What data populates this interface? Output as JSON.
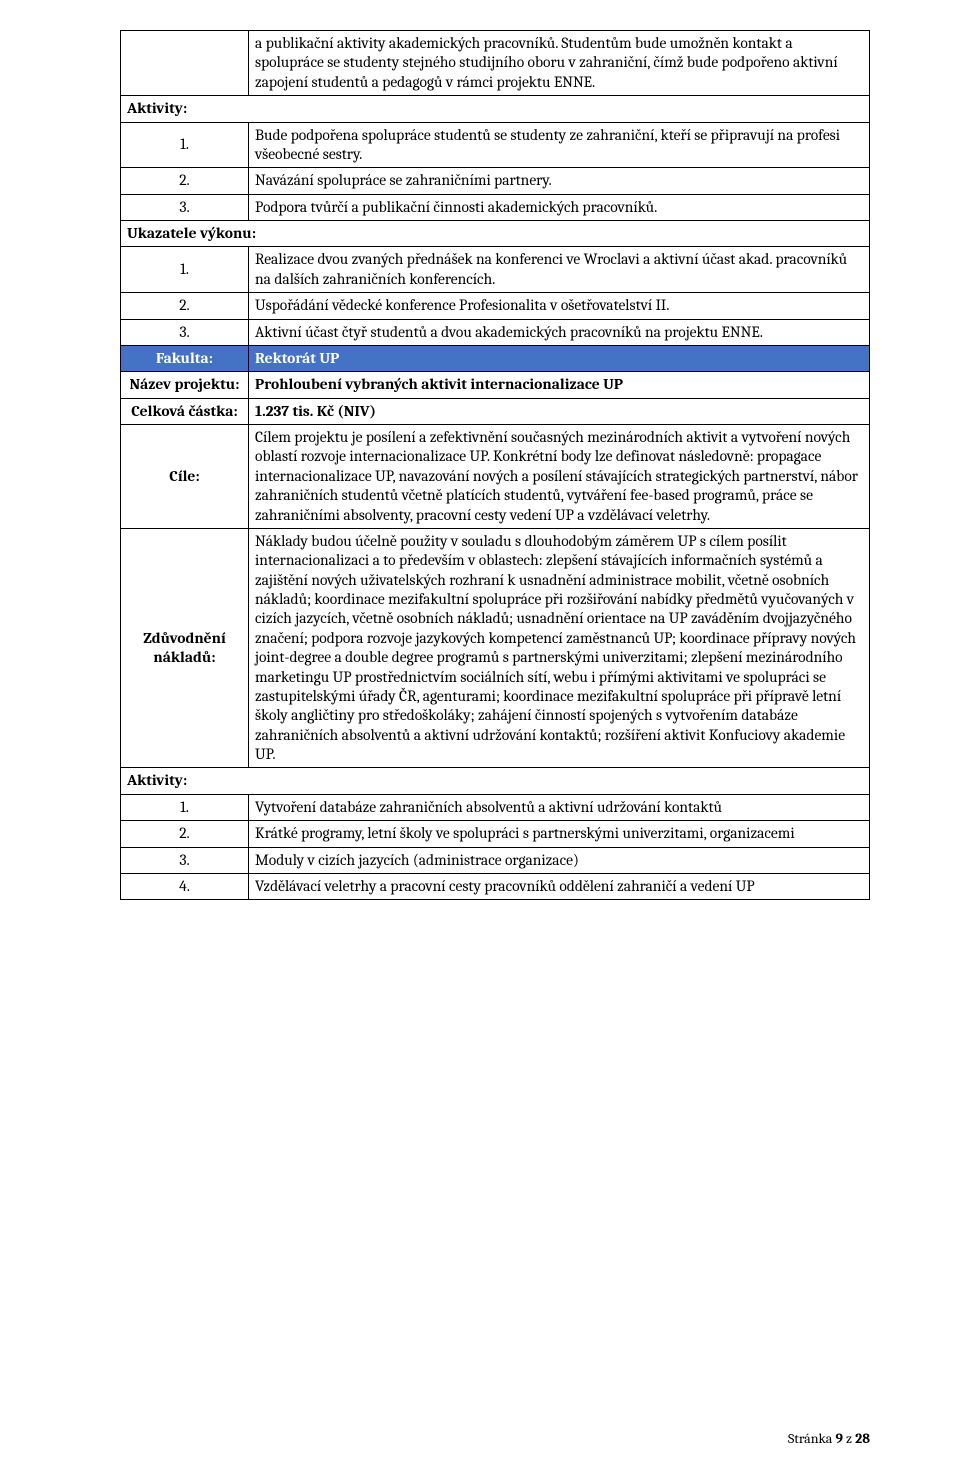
{
  "colors": {
    "row_highlight_bg": "#4472c4",
    "row_highlight_text": "#ffffff",
    "border": "#000000",
    "page_bg": "#ffffff",
    "text": "#000000"
  },
  "section1": {
    "intro": "a publikační aktivity akademických pracovníků. Studentům bude umožněn kontakt a spolupráce se studenty stejného studijního oboru v zahraniční, čímž bude podpořeno aktivní zapojení studentů a pedagogů v rámci projektu ENNE.",
    "aktivity_label": "Aktivity:",
    "aktivity": [
      {
        "n": "1.",
        "text": "Bude podpořena spolupráce studentů se studenty ze zahraniční, kteří se připravují na profesi všeobecné sestry."
      },
      {
        "n": "2.",
        "text": "Navázání spolupráce se zahraničními partnery."
      },
      {
        "n": "3.",
        "text": "Podpora tvůrčí a publikační činnosti akademických pracovníků."
      }
    ],
    "ukazatele_label": "Ukazatele výkonu:",
    "ukazatele": [
      {
        "n": "1.",
        "text": "Realizace dvou zvaných přednášek na konferenci ve Wroclavi a aktivní účast akad. pracovníků na dalších zahraničních konferencích."
      },
      {
        "n": "2.",
        "text": "Uspořádání vědecké konference Profesionalita v ošetřovatelství II."
      },
      {
        "n": "3.",
        "text": "Aktivní účast čtyř studentů a dvou akademických pracovníků na projektu ENNE."
      }
    ]
  },
  "section2": {
    "fakulta_label": "Fakulta:",
    "fakulta_value": "Rektorát UP",
    "nazev_label": "Název projektu:",
    "nazev_value": "Prohloubení vybraných aktivit internacionalizace UP",
    "castka_label": "Celková částka:",
    "castka_value": "1.237 tis. Kč (NIV)",
    "cile_label": "Cíle:",
    "cile_value": "Cílem projektu je posílení a zefektivnění současných mezinárodních aktivit a vytvoření nových oblastí rozvoje internacionalizace UP. Konkrétní body lze definovat následovně: propagace internacionalizace UP, navazování nových a posílení stávajících strategických partnerství, nábor zahraničních studentů včetně platících studentů, vytváření fee-based programů, práce se zahraničními absolventy, pracovní cesty vedení UP a vzdělávací veletrhy.",
    "naklady_label": "Zdůvodnění nákladů:",
    "naklady_value": "Náklady budou účelně použity v souladu s dlouhodobým záměrem UP s cílem posílit internacionalizaci a to především v oblastech: zlepšení stávajících informačních systémů a zajištění nových uživatelských rozhraní k usnadnění administrace mobilit, včetně osobních nákladů; koordinace mezifakultní spolupráce při rozšiřování nabídky předmětů vyučovaných v cizích jazycích, včetně osobních nákladů; usnadnění orientace na UP zaváděním dvojjazyčného značení; podpora rozvoje jazykových kompetencí zaměstnanců UP; koordinace přípravy nových joint-degree a double degree programů s partnerskými univerzitami; zlepšení mezinárodního marketingu UP prostřednictvím sociálních sítí, webu i přímými aktivitami ve spolupráci se zastupitelskými úřady ČR, agenturami; koordinace mezifakultní spolupráce při přípravě letní školy angličtiny pro středoškoláky; zahájení činností spojených s vytvořením databáze zahraničních absolventů a aktivní udržování kontaktů; rozšíření aktivit Konfuciovy akademie UP.",
    "aktivity_label": "Aktivity:",
    "aktivity": [
      {
        "n": "1.",
        "text": "Vytvoření databáze zahraničních absolventů a aktivní udržování kontaktů"
      },
      {
        "n": "2.",
        "text": "Krátké programy, letní školy ve spolupráci s partnerskými univerzitami, organizacemi"
      },
      {
        "n": "3.",
        "text": "Moduly v cizích jazycích (administrace organizace)"
      },
      {
        "n": "4.",
        "text": "Vzdělávací veletrhy a pracovní cesty pracovníků oddělení zahraničí a vedení UP"
      }
    ]
  },
  "footer": {
    "prefix": "Stránka ",
    "page": "9",
    "mid": " z ",
    "total": "28"
  }
}
